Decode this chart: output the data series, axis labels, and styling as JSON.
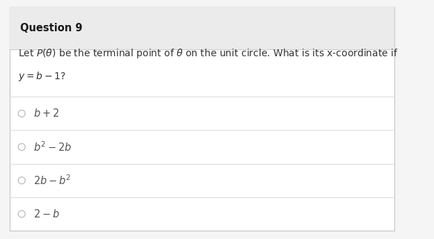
{
  "title": "Question 9",
  "question_line1": "Let $P(\\theta)$ be the terminal point of $\\theta$ on the unit circle. What is its x-coordinate if",
  "question_line2": "$y = b - 1$?",
  "options": [
    "$b + 2$",
    "$b^2 - 2b$",
    "$2b - b^2$",
    "$2 - b$"
  ],
  "header_bg": "#ebebeb",
  "body_bg": "#f5f5f5",
  "card_bg": "#ffffff",
  "border_color": "#cccccc",
  "title_color": "#1a1a1a",
  "question_color": "#333333",
  "option_color": "#555555",
  "divider_color": "#dddddd",
  "radio_color": "#bbbbbb",
  "title_fontsize": 10.5,
  "question_fontsize": 10.0,
  "option_fontsize": 10.5
}
